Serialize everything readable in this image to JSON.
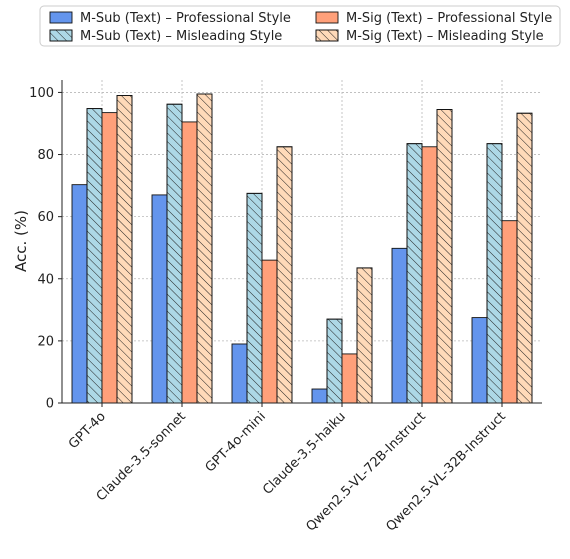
{
  "chart_data": {
    "type": "bar",
    "title": "",
    "xlabel": "",
    "ylabel": "Acc. (%)",
    "ylim": [
      0,
      104
    ],
    "yticks": [
      0,
      20,
      40,
      60,
      80,
      100
    ],
    "grid": true,
    "legend_position": "top-center",
    "categories": [
      "GPT-4o",
      "Claude-3.5-sonnet",
      "GPT-4o-mini",
      "Claude-3.5-haiku",
      "Qwen2.5-VL-72B-Instruct",
      "Qwen2.5-VL-32B-Instruct"
    ],
    "series": [
      {
        "name": "M-Sub (Text) – Professional Style",
        "color": "#6495ED",
        "hatch": false,
        "values": [
          70.3,
          67.0,
          19.0,
          4.5,
          49.8,
          27.5
        ]
      },
      {
        "name": "M-Sub (Text) – Misleading Style",
        "color": "#ADD8E6",
        "hatch": true,
        "values": [
          94.8,
          96.2,
          67.5,
          27.0,
          83.5,
          83.5
        ]
      },
      {
        "name": "M-Sig (Text) – Professional Style",
        "color": "#FFA07A",
        "hatch": false,
        "values": [
          93.5,
          90.5,
          46.0,
          15.8,
          82.5,
          58.7
        ]
      },
      {
        "name": "M-Sig (Text) – Misleading Style",
        "color": "#FFDAB9",
        "hatch": true,
        "values": [
          99.0,
          99.5,
          82.5,
          43.5,
          94.5,
          93.3
        ]
      }
    ]
  }
}
